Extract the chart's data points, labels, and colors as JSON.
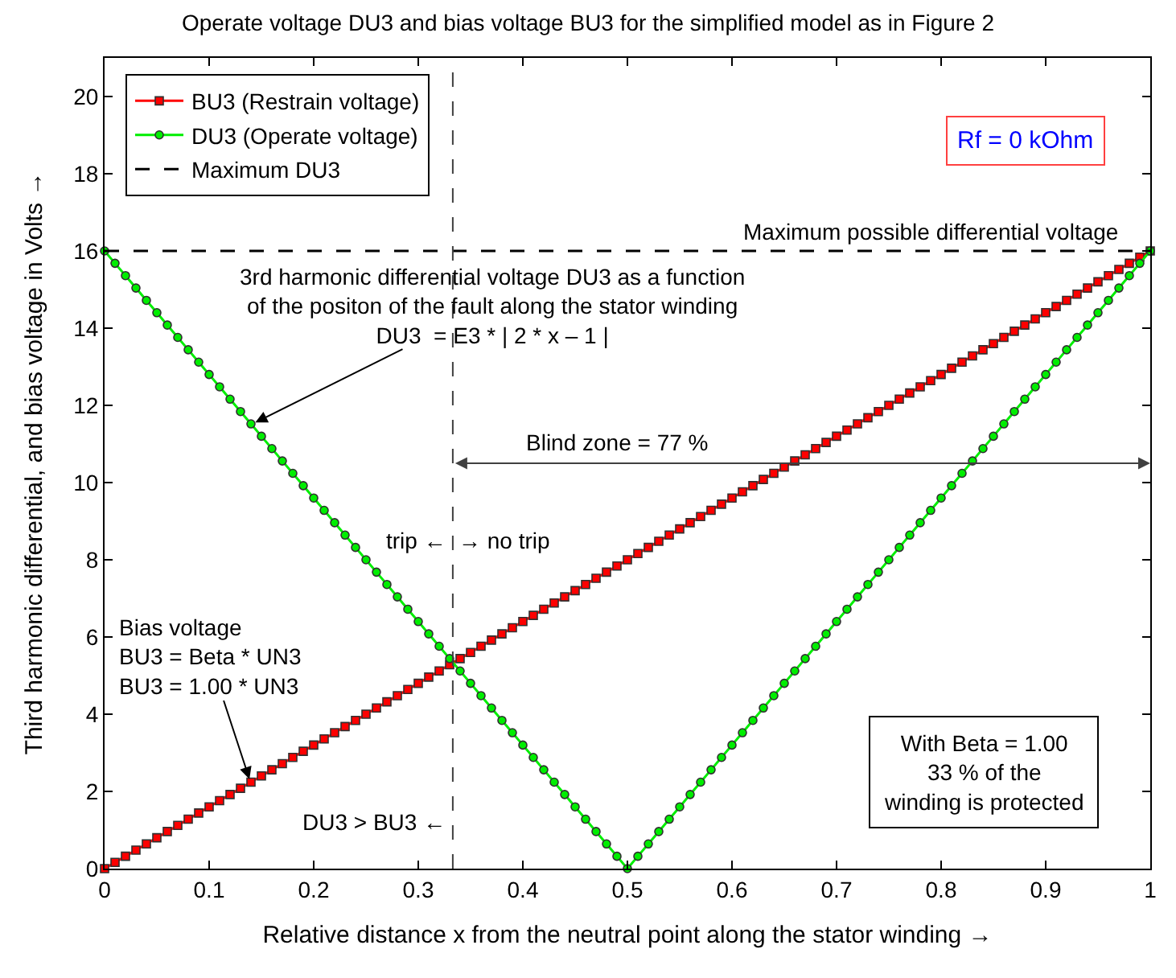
{
  "chart_data": {
    "type": "line",
    "title": "Operate voltage DU3 and bias voltage BU3 for the simplified model as in Figure 2",
    "xlabel": "Relative distance x from the neutral point along the stator winding →",
    "ylabel": "Third harmonic differential, and bias voltage in Volts →",
    "x": [
      0,
      0.01,
      0.02,
      0.03,
      0.04,
      0.05,
      0.06,
      0.07,
      0.08,
      0.09,
      0.1,
      0.11,
      0.12,
      0.13,
      0.14,
      0.15,
      0.16,
      0.17,
      0.18,
      0.19,
      0.2,
      0.21,
      0.22,
      0.23,
      0.24,
      0.25,
      0.26,
      0.27,
      0.28,
      0.29,
      0.3,
      0.31,
      0.32,
      0.33,
      0.34,
      0.35,
      0.36,
      0.37,
      0.38,
      0.39,
      0.4,
      0.41,
      0.42,
      0.43,
      0.44,
      0.45,
      0.46,
      0.47,
      0.48,
      0.49,
      0.5,
      0.51,
      0.52,
      0.53,
      0.54,
      0.55,
      0.56,
      0.57,
      0.58,
      0.59,
      0.6,
      0.61,
      0.62,
      0.63,
      0.64,
      0.65,
      0.66,
      0.67,
      0.68,
      0.69,
      0.7,
      0.71,
      0.72,
      0.73,
      0.74,
      0.75,
      0.76,
      0.77,
      0.78,
      0.79,
      0.8,
      0.81,
      0.82,
      0.83,
      0.84,
      0.85,
      0.86,
      0.87,
      0.88,
      0.89,
      0.9,
      0.91,
      0.92,
      0.93,
      0.94,
      0.95,
      0.96,
      0.97,
      0.98,
      0.99,
      1
    ],
    "series": [
      {
        "name": "BU3 (Restrain voltage)",
        "color": "#ff0000",
        "marker": "square",
        "line_style": "solid",
        "values": [
          0,
          0.16,
          0.32,
          0.48,
          0.64,
          0.8,
          0.96,
          1.12,
          1.28,
          1.44,
          1.6,
          1.76,
          1.92,
          2.08,
          2.24,
          2.4,
          2.56,
          2.72,
          2.88,
          3.04,
          3.2,
          3.36,
          3.52,
          3.68,
          3.84,
          4,
          4.16,
          4.32,
          4.48,
          4.64,
          4.8,
          4.96,
          5.12,
          5.28,
          5.44,
          5.6,
          5.76,
          5.92,
          6.08,
          6.24,
          6.4,
          6.56,
          6.72,
          6.88,
          7.04,
          7.2,
          7.36,
          7.52,
          7.68,
          7.84,
          8,
          8.16,
          8.32,
          8.48,
          8.64,
          8.8,
          8.96,
          9.12,
          9.28,
          9.44,
          9.6,
          9.76,
          9.92,
          10.08,
          10.24,
          10.4,
          10.56,
          10.72,
          10.88,
          11.04,
          11.2,
          11.36,
          11.52,
          11.68,
          11.84,
          12,
          12.16,
          12.32,
          12.48,
          12.64,
          12.8,
          12.96,
          13.12,
          13.28,
          13.44,
          13.6,
          13.76,
          13.92,
          14.08,
          14.24,
          14.4,
          14.56,
          14.72,
          14.88,
          15.04,
          15.2,
          15.36,
          15.52,
          15.68,
          15.84,
          16
        ]
      },
      {
        "name": "DU3 (Operate voltage)",
        "color": "#00ee00",
        "marker": "circle",
        "line_style": "solid",
        "values": [
          16,
          15.68,
          15.36,
          15.04,
          14.72,
          14.4,
          14.08,
          13.76,
          13.44,
          13.12,
          12.8,
          12.48,
          12.16,
          11.84,
          11.52,
          11.2,
          10.88,
          10.56,
          10.24,
          9.92,
          9.6,
          9.28,
          8.96,
          8.64,
          8.32,
          8,
          7.68,
          7.36,
          7.04,
          6.72,
          6.4,
          6.08,
          5.76,
          5.44,
          5.12,
          4.8,
          4.48,
          4.16,
          3.84,
          3.52,
          3.2,
          2.88,
          2.56,
          2.24,
          1.92,
          1.6,
          1.28,
          0.96,
          0.64,
          0.32,
          0,
          0.32,
          0.64,
          0.96,
          1.28,
          1.6,
          1.92,
          2.24,
          2.56,
          2.88,
          3.2,
          3.52,
          3.84,
          4.16,
          4.48,
          4.8,
          5.12,
          5.44,
          5.76,
          6.08,
          6.4,
          6.72,
          7.04,
          7.36,
          7.68,
          8,
          8.32,
          8.64,
          8.96,
          9.28,
          9.6,
          9.92,
          10.24,
          10.56,
          10.88,
          11.2,
          11.52,
          11.84,
          12.16,
          12.48,
          12.8,
          13.12,
          13.44,
          13.76,
          14.08,
          14.4,
          14.72,
          15.04,
          15.36,
          15.68,
          16
        ]
      },
      {
        "name": "Maximum DU3",
        "color": "#000000",
        "line_style": "dashed",
        "x": [
          0,
          1
        ],
        "values": [
          16,
          16
        ]
      }
    ],
    "ref_lines": [
      {
        "axis": "x",
        "value": 0.333,
        "color": "#404040",
        "line_style": "dashed"
      }
    ],
    "annotations": [
      "Maximum possible differential voltage",
      {
        "text": "3rd harmonic differential voltage DU3 as a function\nof the positon of the fault along the stator winding\nDU3  = E3 * | 2 * x – 1 |",
        "x": 0.14,
        "y": 11.5
      },
      "Blind zone = 77 %",
      "trip ←",
      "→ no trip",
      {
        "text": "Bias voltage\nBU3 = Beta * UN3\nBU3 = 1.00 * UN3",
        "x": 0.14,
        "y": 2.2
      },
      "DU3 > BU3 ←",
      "With Beta = 1.00\n33 % of the\nwinding is protected",
      "Rf = 0 kOhm"
    ],
    "xlim": [
      0,
      1
    ],
    "xticks": [
      0,
      0.1,
      0.2,
      0.3,
      0.4,
      0.5,
      0.6,
      0.7,
      0.8,
      0.9,
      1
    ],
    "ylim": [
      0,
      21
    ],
    "yticks": [
      0,
      2,
      4,
      6,
      8,
      10,
      12,
      14,
      16,
      18,
      20
    ],
    "grid": false,
    "legend": "top left"
  }
}
